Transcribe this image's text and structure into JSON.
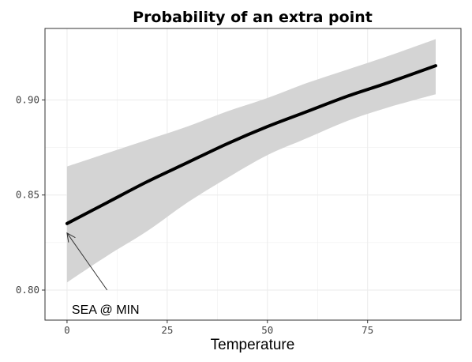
{
  "chart_data": {
    "type": "line",
    "title": "Probability of an extra point",
    "xlabel": "Temperature",
    "ylabel": "",
    "xlim": [
      -5.5,
      98.3
    ],
    "ylim": [
      0.7842,
      0.9376
    ],
    "x_ticks": [
      0,
      25,
      50,
      75
    ],
    "x_tick_labels": [
      "0",
      "25",
      "50",
      "75"
    ],
    "y_ticks": [
      0.8,
      0.85,
      0.9
    ],
    "y_tick_labels": [
      "0.80",
      "0.85",
      "0.90"
    ],
    "grid": true,
    "line_color": "#000000",
    "ribbon_color": "#d4d4d4",
    "series": [
      {
        "x": [
          0,
          10,
          20,
          30,
          40,
          50,
          60,
          70,
          80,
          92
        ],
        "y": [
          0.835,
          0.846,
          0.857,
          0.867,
          0.877,
          0.886,
          0.894,
          0.902,
          0.909,
          0.918
        ],
        "lower": [
          0.804,
          0.818,
          0.831,
          0.846,
          0.859,
          0.871,
          0.88,
          0.889,
          0.896,
          0.903
        ],
        "upper": [
          0.865,
          0.872,
          0.879,
          0.886,
          0.894,
          0.901,
          0.909,
          0.916,
          0.923,
          0.932
        ]
      }
    ],
    "annotations": [
      {
        "text": "SEA @ MIN",
        "point": [
          0,
          0.83
        ],
        "text_at": [
          10,
          0.8
        ]
      }
    ]
  }
}
